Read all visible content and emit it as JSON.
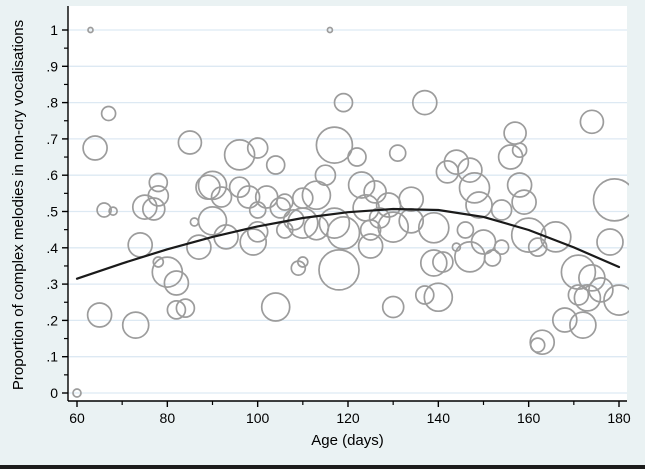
{
  "figure": {
    "bg_color": "#eaf2f3",
    "plot_bg_color": "#ffffff",
    "grid_color": "#dde9f3",
    "axis_color": "#000000",
    "bubble_stroke_color": "#9c9c9c",
    "curve_color": "#1a1a1a",
    "bottom_border_color": "#1c1c1c"
  },
  "chart_data": {
    "type": "scatter",
    "subtype": "bubble-with-quadratic-fit",
    "title": "",
    "xlabel": "Age (days)",
    "ylabel": "Proportion of complex melodies in non-cry vocalisations",
    "xlim": [
      60,
      180
    ],
    "ylim": [
      0,
      1
    ],
    "grid": "horizontal-only",
    "legend": "none",
    "x_ticks_major": [
      60,
      80,
      100,
      120,
      140,
      160,
      180
    ],
    "x_ticks_minor": [
      70,
      90,
      110,
      130,
      150,
      170
    ],
    "y_ticks_major": [
      0,
      0.1,
      0.2,
      0.3,
      0.4,
      0.5,
      0.6,
      0.7,
      0.8,
      0.9,
      1
    ],
    "y_tick_labels": [
      "0",
      ".1",
      ".2",
      ".3",
      ".4",
      ".5",
      ".6",
      ".7",
      ".8",
      ".9",
      "1"
    ],
    "y_ticks_minor": [
      0.05,
      0.15,
      0.25,
      0.35,
      0.45,
      0.55,
      0.65,
      0.75,
      0.85,
      0.95
    ],
    "points_format": [
      "age_days",
      "proportion",
      "bubble_radius_px"
    ],
    "points": [
      [
        63,
        1.0,
        2.5
      ],
      [
        116,
        1.0,
        2.5
      ],
      [
        67,
        0.77,
        7
      ],
      [
        64,
        0.675,
        12
      ],
      [
        85,
        0.69,
        11.5
      ],
      [
        78,
        0.58,
        9
      ],
      [
        119,
        0.8,
        9
      ],
      [
        137,
        0.8,
        12
      ],
      [
        174,
        0.747,
        11.5
      ],
      [
        157,
        0.716,
        11
      ],
      [
        156,
        0.65,
        12
      ],
      [
        158,
        0.669,
        7
      ],
      [
        117,
        0.683,
        18
      ],
      [
        122,
        0.65,
        9
      ],
      [
        131,
        0.661,
        8
      ],
      [
        96,
        0.656,
        15
      ],
      [
        100,
        0.675,
        10
      ],
      [
        104,
        0.628,
        9
      ],
      [
        115,
        0.6,
        10
      ],
      [
        123,
        0.573,
        13
      ],
      [
        126,
        0.554,
        11
      ],
      [
        113,
        0.545,
        14
      ],
      [
        110,
        0.537,
        10
      ],
      [
        106,
        0.526,
        8
      ],
      [
        102,
        0.54,
        11
      ],
      [
        96,
        0.567,
        10
      ],
      [
        89,
        0.567,
        12
      ],
      [
        90,
        0.572,
        14
      ],
      [
        78,
        0.543,
        10
      ],
      [
        92,
        0.54,
        10
      ],
      [
        98,
        0.54,
        11
      ],
      [
        100,
        0.504,
        8
      ],
      [
        66,
        0.504,
        7
      ],
      [
        68,
        0.501,
        4
      ],
      [
        75,
        0.512,
        12
      ],
      [
        77,
        0.507,
        11
      ],
      [
        86,
        0.471,
        4
      ],
      [
        90,
        0.474,
        14
      ],
      [
        93,
        0.43,
        12
      ],
      [
        99,
        0.416,
        13
      ],
      [
        74,
        0.408,
        12
      ],
      [
        87,
        0.402,
        12
      ],
      [
        78,
        0.361,
        5
      ],
      [
        80,
        0.333,
        15
      ],
      [
        82,
        0.303,
        12
      ],
      [
        82,
        0.229,
        9
      ],
      [
        84,
        0.234,
        9
      ],
      [
        65,
        0.215,
        12
      ],
      [
        73,
        0.187,
        13
      ],
      [
        60,
        0.0,
        4
      ],
      [
        110,
        0.361,
        5
      ],
      [
        109,
        0.344,
        7
      ],
      [
        118,
        0.339,
        20
      ],
      [
        104,
        0.237,
        14
      ],
      [
        130,
        0.237,
        10.5
      ],
      [
        137,
        0.27,
        9
      ],
      [
        140,
        0.264,
        14
      ],
      [
        139,
        0.358,
        13
      ],
      [
        141,
        0.361,
        10
      ],
      [
        144,
        0.402,
        4
      ],
      [
        147,
        0.375,
        15
      ],
      [
        152,
        0.372,
        8
      ],
      [
        108,
        0.477,
        10
      ],
      [
        106,
        0.449,
        8
      ],
      [
        100,
        0.444,
        10
      ],
      [
        105,
        0.51,
        10
      ],
      [
        113,
        0.455,
        12
      ],
      [
        117,
        0.468,
        15
      ],
      [
        119,
        0.441,
        16
      ],
      [
        110,
        0.468,
        15
      ],
      [
        124,
        0.51,
        13
      ],
      [
        129,
        0.518,
        12
      ],
      [
        130,
        0.457,
        15
      ],
      [
        125,
        0.449,
        10
      ],
      [
        125,
        0.405,
        12
      ],
      [
        127,
        0.482,
        10
      ],
      [
        134,
        0.474,
        12
      ],
      [
        134,
        0.534,
        12
      ],
      [
        139,
        0.455,
        15
      ],
      [
        149,
        0.518,
        13
      ],
      [
        154,
        0.504,
        10
      ],
      [
        159,
        0.526,
        12
      ],
      [
        146,
        0.449,
        8
      ],
      [
        150,
        0.416,
        12
      ],
      [
        154,
        0.402,
        7
      ],
      [
        160,
        0.435,
        17
      ],
      [
        162,
        0.402,
        9
      ],
      [
        166,
        0.43,
        15
      ],
      [
        178,
        0.416,
        13
      ],
      [
        179,
        0.532,
        21
      ],
      [
        144,
        0.636,
        12
      ],
      [
        142,
        0.609,
        11
      ],
      [
        147,
        0.614,
        12
      ],
      [
        148,
        0.565,
        15
      ],
      [
        158,
        0.573,
        12
      ],
      [
        171,
        0.333,
        17
      ],
      [
        174,
        0.317,
        13
      ],
      [
        173,
        0.262,
        13
      ],
      [
        176,
        0.284,
        12
      ],
      [
        180,
        0.256,
        15
      ],
      [
        171,
        0.27,
        10
      ],
      [
        168,
        0.201,
        12
      ],
      [
        172,
        0.187,
        13
      ],
      [
        163,
        0.14,
        12
      ],
      [
        162,
        0.132,
        7
      ]
    ],
    "fit_curve": {
      "label": "quadratic fit",
      "points": [
        [
          60,
          0.315
        ],
        [
          70,
          0.357
        ],
        [
          80,
          0.396
        ],
        [
          90,
          0.43
        ],
        [
          100,
          0.459
        ],
        [
          110,
          0.482
        ],
        [
          120,
          0.498
        ],
        [
          130,
          0.507
        ],
        [
          140,
          0.504
        ],
        [
          150,
          0.485
        ],
        [
          160,
          0.449
        ],
        [
          170,
          0.401
        ],
        [
          180,
          0.347
        ]
      ]
    }
  }
}
